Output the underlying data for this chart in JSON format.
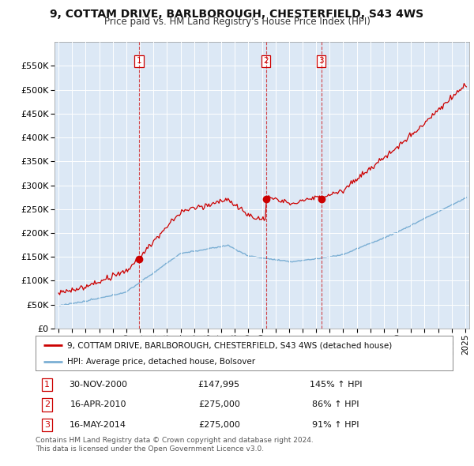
{
  "title": "9, COTTAM DRIVE, BARLBOROUGH, CHESTERFIELD, S43 4WS",
  "subtitle": "Price paid vs. HM Land Registry's House Price Index (HPI)",
  "legend_label_red": "9, COTTAM DRIVE, BARLBOROUGH, CHESTERFIELD, S43 4WS (detached house)",
  "legend_label_blue": "HPI: Average price, detached house, Bolsover",
  "footer1": "Contains HM Land Registry data © Crown copyright and database right 2024.",
  "footer2": "This data is licensed under the Open Government Licence v3.0.",
  "transactions": [
    {
      "num": 1,
      "date": "30-NOV-2000",
      "price": "£147,995",
      "hpi": "145% ↑ HPI"
    },
    {
      "num": 2,
      "date": "16-APR-2010",
      "price": "£275,000",
      "hpi": "86% ↑ HPI"
    },
    {
      "num": 3,
      "date": "16-MAY-2014",
      "price": "£275,000",
      "hpi": "91% ↑ HPI"
    }
  ],
  "sale_dates": [
    2000.917,
    2010.292,
    2014.375
  ],
  "sale_prices": [
    147995,
    275000,
    275000
  ],
  "vlines": [
    2000.917,
    2010.292,
    2014.375
  ],
  "ylim": [
    0,
    600000
  ],
  "yticks": [
    0,
    50000,
    100000,
    150000,
    200000,
    250000,
    300000,
    350000,
    400000,
    450000,
    500000,
    550000
  ],
  "xlim": [
    1994.7,
    2025.3
  ],
  "background_color": "#ffffff",
  "plot_bg_color": "#dce8f5",
  "grid_color": "#ffffff",
  "red_color": "#cc0000",
  "blue_color": "#7bafd4"
}
